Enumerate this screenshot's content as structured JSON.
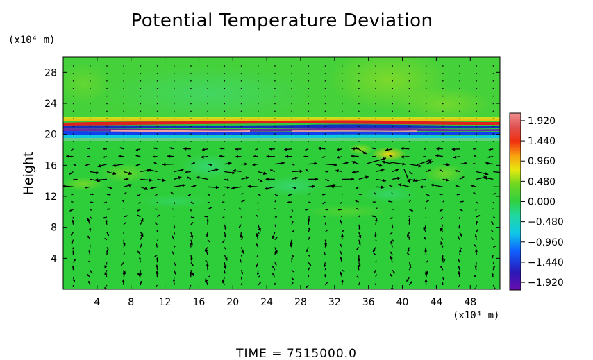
{
  "chart_data": {
    "type": "heatmap",
    "title": "Potential Temperature Deviation",
    "ylabel": "Height",
    "y_unit": "(x10⁴ m)",
    "x_unit": "(x10⁴ m)",
    "footer": "TIME  =  7515000.0",
    "xlim": [
      0,
      51.5
    ],
    "ylim": [
      0,
      30
    ],
    "x_ticks": [
      4,
      8,
      12,
      16,
      20,
      24,
      28,
      32,
      36,
      40,
      44,
      48
    ],
    "y_ticks": [
      4,
      8,
      12,
      16,
      20,
      24,
      28
    ],
    "colorbar": {
      "range": [
        -2.1,
        2.1
      ],
      "tick_values": [
        1.92,
        1.44,
        0.96,
        0.48,
        0.0,
        -0.48,
        -0.96,
        -1.44,
        -1.92
      ],
      "tick_labels": [
        "1.920",
        "1.440",
        "0.960",
        "0.480",
        "0.000",
        "−0.480",
        "−0.960",
        "−1.440",
        "−1.920"
      ]
    },
    "colors": {
      "background_field": "#2fcf3a",
      "positive_extreme": "#f08080",
      "negative_extreme": "#6a0dad"
    },
    "overlay": "wind vector arrows (black), strong below height 20, weak dots above"
  }
}
